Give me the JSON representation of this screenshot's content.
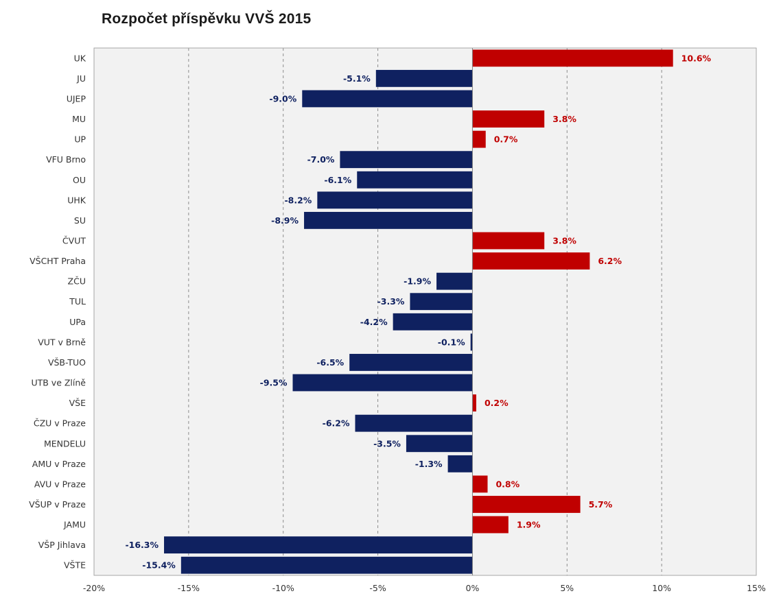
{
  "chart_data": {
    "type": "bar",
    "orientation": "horizontal",
    "title": "Rozpočet příspěvku VVŠ 2015",
    "xlabel": "",
    "ylabel": "",
    "xlim": [
      -20,
      15
    ],
    "x_ticks": [
      -20,
      -15,
      -10,
      -5,
      0,
      5,
      10,
      15
    ],
    "x_tick_labels": [
      "-20%",
      "-15%",
      "-10%",
      "-5%",
      "0%",
      "5%",
      "10%",
      "15%"
    ],
    "grid": "vertical dashed",
    "legend": "none",
    "categories": [
      "UK",
      "JU",
      "UJEP",
      "MU",
      "UP",
      "VFU Brno",
      "OU",
      "UHK",
      "SU",
      "ČVUT",
      "VŠCHT Praha",
      "ZČU",
      "TUL",
      "UPa",
      "VUT v Brně",
      "VŠB-TUO",
      "UTB ve Zlíně",
      "VŠE",
      "ČZU v Praze",
      "MENDELU",
      "AMU v Praze",
      "AVU v Praze",
      "VŠUP v Praze",
      "JAMU",
      "VŠP Jihlava",
      "VŠTE"
    ],
    "values": [
      10.6,
      -5.1,
      -9.0,
      3.8,
      0.7,
      -7.0,
      -6.1,
      -8.2,
      -8.9,
      3.8,
      6.2,
      -1.9,
      -3.3,
      -4.2,
      -0.1,
      -6.5,
      -9.5,
      0.2,
      -6.2,
      -3.5,
      -1.3,
      0.8,
      5.7,
      1.9,
      -16.3,
      -15.4
    ],
    "data_labels": [
      "10.6%",
      "-5.1%",
      "-9.0%",
      "3.8%",
      "0.7%",
      "-7.0%",
      "-6.1%",
      "-8.2%",
      "-8.9%",
      "3.8%",
      "6.2%",
      "-1.9%",
      "-3.3%",
      "-4.2%",
      "-0.1%",
      "-6.5%",
      "-9.5%",
      "0.2%",
      "-6.2%",
      "-3.5%",
      "-1.3%",
      "0.8%",
      "5.7%",
      "1.9%",
      "-16.3%",
      "-15.4%"
    ],
    "colors": {
      "positive": "#c00000",
      "negative": "#0f2160",
      "plot_bg": "#f2f2f2",
      "grid": "#8c8c8c",
      "axis": "#a6a6a6"
    }
  }
}
